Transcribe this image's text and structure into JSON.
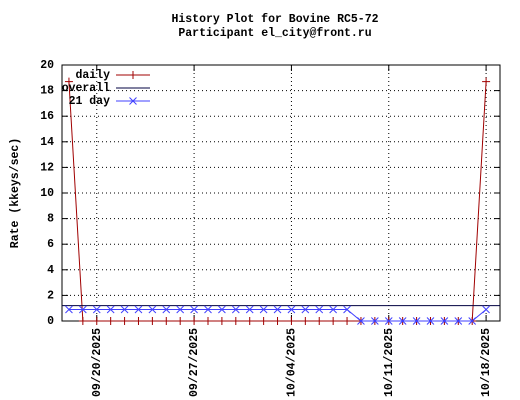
{
  "chart_data": {
    "type": "line",
    "title": "History Plot for Bovine RC5-72",
    "subtitle": "Participant el_city@front.ru",
    "y_label": "Rate (kkeys/sec)",
    "x": [
      "09/18/2025",
      "09/19/2025",
      "09/20/2025",
      "09/21/2025",
      "09/22/2025",
      "09/23/2025",
      "09/24/2025",
      "09/25/2025",
      "09/26/2025",
      "09/27/2025",
      "09/28/2025",
      "09/29/2025",
      "09/30/2025",
      "10/01/2025",
      "10/02/2025",
      "10/03/2025",
      "10/04/2025",
      "10/05/2025",
      "10/06/2025",
      "10/07/2025",
      "10/08/2025",
      "10/09/2025",
      "10/10/2025",
      "10/11/2025",
      "10/12/2025",
      "10/13/2025",
      "10/14/2025",
      "10/15/2025",
      "10/16/2025",
      "10/17/2025",
      "10/18/2025"
    ],
    "series": [
      {
        "name": "daily",
        "color": "#a00000",
        "marker": "plus",
        "values": [
          18.7,
          0,
          0,
          0,
          0,
          0,
          0,
          0,
          0,
          0,
          0,
          0,
          0,
          0,
          0,
          0,
          0,
          0,
          0,
          0,
          0,
          0,
          0,
          0,
          0,
          0,
          0,
          0,
          0,
          0,
          18.7
        ]
      },
      {
        "name": "overall",
        "color": "#000040",
        "value": 1.2
      },
      {
        "name": "21 day",
        "color": "#4040ff",
        "marker": "cross",
        "values": [
          0.9,
          0.9,
          0.9,
          0.9,
          0.9,
          0.9,
          0.9,
          0.9,
          0.9,
          0.9,
          0.9,
          0.9,
          0.9,
          0.9,
          0.9,
          0.9,
          0.9,
          0.9,
          0.9,
          0.9,
          0.9,
          0,
          0,
          0,
          0,
          0,
          0,
          0,
          0,
          0,
          0.9
        ]
      }
    ],
    "xlim": [
      "09/17/2025 12:00",
      "10/19/2025 00:00"
    ],
    "xticks": [
      "09/20/2025",
      "09/27/2025",
      "10/04/2025",
      "10/11/2025",
      "10/18/2025"
    ],
    "ylim": [
      0,
      20
    ],
    "yticks": [
      0,
      2,
      4,
      6,
      8,
      10,
      12,
      14,
      16,
      18,
      20
    ],
    "grid": true,
    "legend": "upper left"
  }
}
